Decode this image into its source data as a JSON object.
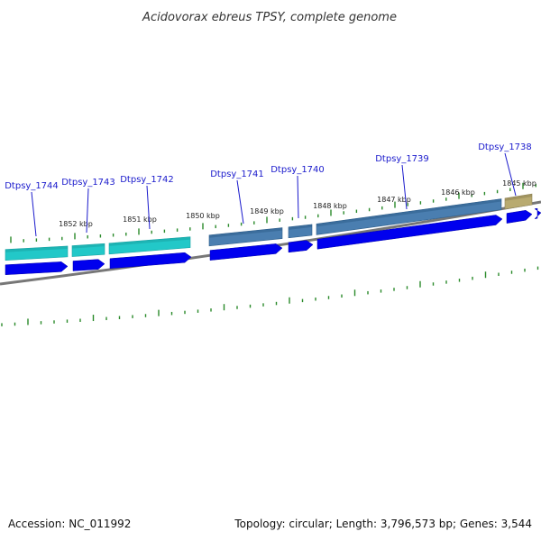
{
  "title": "Acidovorax ebreus TPSY, complete genome",
  "accession": "Accession: NC_011992",
  "summary": "Topology: circular; Length: 3,796,573 bp; Genes: 3,544",
  "colors": {
    "backbone": "#8c8c8c",
    "tick": "#2a8a2a",
    "cds_arrow": "#0000ee",
    "gene_teal": "#22c8c8",
    "gene_steel": "#4a7eb0",
    "gene_khaki": "#b8aa70",
    "label_line": "#1a1acc"
  },
  "scale_labels": [
    "1852 kbp",
    "1851 kbp",
    "1850 kbp",
    "1849 kbp",
    "1848 kbp",
    "1847 kbp",
    "1846 kbp",
    "1845 kbp"
  ],
  "genes": [
    {
      "name": "Dtpsy_1744",
      "color": "teal"
    },
    {
      "name": "Dtpsy_1743",
      "color": "teal"
    },
    {
      "name": "Dtpsy_1742",
      "color": "teal"
    },
    {
      "name": "Dtpsy_1741",
      "color": "steel"
    },
    {
      "name": "Dtpsy_1740",
      "color": "steel"
    },
    {
      "name": "Dtpsy_1739",
      "color": "steel"
    },
    {
      "name": "Dtpsy_1738",
      "color": "khaki"
    }
  ]
}
